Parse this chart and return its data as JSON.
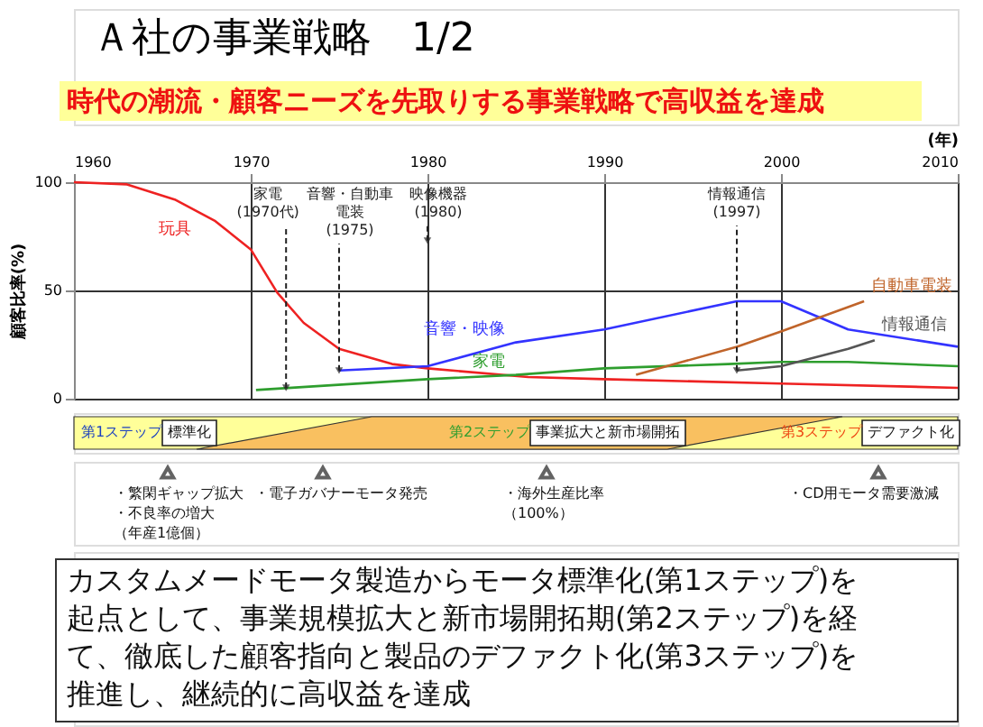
{
  "chart_data": {
    "type": "line",
    "title": "Ａ社の事業戦略　1/2",
    "subtitle": "時代の潮流・顧客ニーズを先取りする事業戦略で高収益を達成",
    "xlabel": "(年)",
    "ylabel": "顧客比率(%)",
    "xlim": [
      1960,
      2010
    ],
    "xticks": [
      1960,
      1970,
      1980,
      1990,
      2000,
      2010
    ],
    "ylim": [
      0,
      100
    ],
    "yticks": [
      0,
      50,
      100
    ],
    "grid": true,
    "line_style": "solid",
    "series": [
      {
        "name": "玩具",
        "color": "#ee2222",
        "x": [
          1960,
          1963,
          1965.7,
          1968,
          1970,
          1971.5,
          1973,
          1975,
          1978,
          1980,
          1985.7,
          1990,
          2000,
          2010
        ],
        "values": [
          100,
          99,
          92,
          82,
          69,
          49,
          35,
          23,
          16,
          14,
          10,
          9,
          7,
          5
        ]
      },
      {
        "name": "音響・映像",
        "color": "#3333ff",
        "x": [
          1975,
          1980,
          1985,
          1990,
          1997.5,
          2000,
          2003.8,
          2010
        ],
        "values": [
          13,
          15,
          26,
          32,
          45,
          45,
          32,
          24
        ]
      },
      {
        "name": "家電",
        "color": "#2e9e2e",
        "x": [
          1970.3,
          1980,
          1985,
          1990,
          1997,
          2000,
          2003.8,
          2010
        ],
        "values": [
          4,
          9,
          11,
          14,
          16,
          17,
          17,
          15
        ]
      },
      {
        "name": "自動車電装",
        "color": "#c0642a",
        "x": [
          1991.8,
          1997.5,
          2000,
          2004.7
        ],
        "values": [
          11,
          24,
          31,
          45
        ]
      },
      {
        "name": "情報通信",
        "color": "#555555",
        "x": [
          1997.5,
          2000,
          2003.8,
          2005.3
        ],
        "values": [
          13,
          15,
          23,
          27
        ]
      }
    ],
    "annotations": [
      {
        "text": "家電(1970代)",
        "x": 1972,
        "y": 5
      },
      {
        "text": "音響・自動車電装(1975)",
        "x": 1975,
        "y": 13
      },
      {
        "text": "映像機器(1980)",
        "x": 1980,
        "y": 73
      },
      {
        "text": "情報通信(1997)",
        "x": 1997.5,
        "y": 13
      },
      "第1ステップ",
      "標準化",
      "第2ステップ",
      "事業拡大と新市場開拓",
      "第3ステップ",
      "デファクト化",
      "・繁閑ギャップ拡大・不良率の増大（年産1億個）",
      "・電子ガバナーモータ発売",
      "・海外生産比率（100%）",
      "・CD用モータ需要激減",
      "カスタムメードモータ製造からモータ標準化(第1ステップ)を起点として、事業規模拡大と新市場開拓期(第2ステップ)を経て、徹底した顧客指向と製品のデファクト化(第3ステップ)を推進し、継続的に高収益を達成"
    ]
  }
}
